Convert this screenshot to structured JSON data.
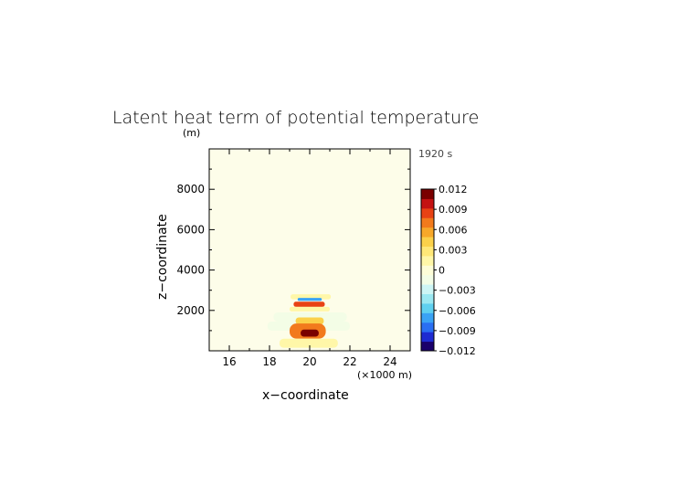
{
  "chart_data": {
    "type": "heatmap",
    "title": "Latent heat term of potential temperature",
    "time_label": "1920 s",
    "xlabel": "x−coordinate",
    "ylabel": "z−coordinate",
    "x_unit": "(×1000 m)",
    "y_unit": "(m)",
    "xlim": [
      15,
      25
    ],
    "ylim": [
      0,
      10000
    ],
    "xticks": [
      16,
      18,
      20,
      22,
      24
    ],
    "xtick_labels": [
      "16",
      "18",
      "20",
      "22",
      "24"
    ],
    "yticks": [
      2000,
      4000,
      6000,
      8000
    ],
    "ytick_labels": [
      "2000",
      "4000",
      "6000",
      "8000"
    ],
    "colorbar": {
      "min": -0.012,
      "max": 0.012,
      "ticks": [
        0.012,
        0.009,
        0.006,
        0.003,
        0,
        -0.003,
        -0.006,
        -0.009,
        -0.012
      ],
      "tick_labels": [
        "0.012",
        "0.009",
        "0.006",
        "0.003",
        "0",
        "−0.003",
        "−0.006",
        "−0.009",
        "−0.012"
      ],
      "colors": [
        "#1a006b",
        "#1e2bd1",
        "#2a6ff2",
        "#3aa3f5",
        "#5fd0f0",
        "#9be8f2",
        "#cdf5f5",
        "#f3fde6",
        "#fdfdd8",
        "#fff7a8",
        "#ffe878",
        "#fbd14a",
        "#f7a82a",
        "#f27a1c",
        "#e84214",
        "#c41212",
        "#7a0000"
      ]
    },
    "background_value": 0,
    "features": [
      {
        "x": [
          19.05,
          21.05
        ],
        "z": [
          2550,
          2800
        ],
        "value": 0.002
      },
      {
        "x": [
          19.4,
          20.6
        ],
        "z": [
          2470,
          2620
        ],
        "value": -0.007
      },
      {
        "x": [
          19.2,
          20.75
        ],
        "z": [
          2180,
          2430
        ],
        "value": 0.009
      },
      {
        "x": [
          19.0,
          21.0
        ],
        "z": [
          1950,
          2180
        ],
        "value": 0.002
      },
      {
        "x": [
          18.2,
          21.85
        ],
        "z": [
          1450,
          1900
        ],
        "value": -0.002
      },
      {
        "x": [
          17.9,
          22.0
        ],
        "z": [
          1000,
          1450
        ],
        "value": -0.001
      },
      {
        "x": [
          19.3,
          20.7
        ],
        "z": [
          1300,
          1650
        ],
        "value": 0.004
      },
      {
        "x": [
          19.0,
          20.8
        ],
        "z": [
          600,
          1350
        ],
        "value": 0.007
      },
      {
        "x": [
          19.55,
          20.45
        ],
        "z": [
          700,
          1050
        ],
        "value": 0.012
      },
      {
        "x": [
          18.5,
          21.4
        ],
        "z": [
          150,
          600
        ],
        "value": 0.002
      }
    ]
  }
}
